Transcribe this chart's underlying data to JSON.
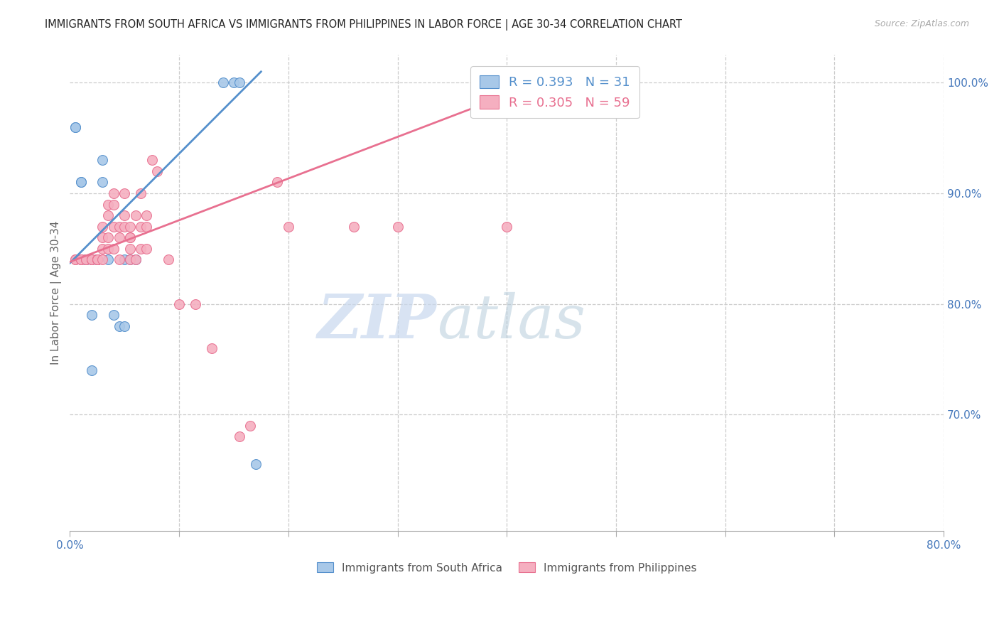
{
  "title": "IMMIGRANTS FROM SOUTH AFRICA VS IMMIGRANTS FROM PHILIPPINES IN LABOR FORCE | AGE 30-34 CORRELATION CHART",
  "source": "Source: ZipAtlas.com",
  "ylabel": "In Labor Force | Age 30-34",
  "xlim": [
    0.0,
    0.8
  ],
  "ylim": [
    0.595,
    1.025
  ],
  "x_ticks": [
    0.0,
    0.1,
    0.2,
    0.3,
    0.4,
    0.5,
    0.6,
    0.7,
    0.8
  ],
  "x_tick_labels": [
    "0.0%",
    "",
    "",
    "",
    "",
    "",
    "",
    "",
    "80.0%"
  ],
  "y_ticks_right": [
    1.0,
    0.9,
    0.8,
    0.7
  ],
  "y_tick_labels_right": [
    "100.0%",
    "90.0%",
    "80.0%",
    "70.0%"
  ],
  "sa_color": "#a8c8e8",
  "ph_color": "#f5afc0",
  "sa_line_color": "#5590cc",
  "ph_line_color": "#e87090",
  "watermark_zip": "ZIP",
  "watermark_atlas": "atlas",
  "legend_r_sa": "R = 0.393",
  "legend_n_sa": "N = 31",
  "legend_r_ph": "R = 0.305",
  "legend_n_ph": "N = 59",
  "sa_scatter_x": [
    0.005,
    0.005,
    0.01,
    0.01,
    0.01,
    0.015,
    0.015,
    0.015,
    0.02,
    0.02,
    0.02,
    0.02,
    0.02,
    0.02,
    0.02,
    0.025,
    0.025,
    0.025,
    0.03,
    0.03,
    0.035,
    0.04,
    0.045,
    0.05,
    0.05,
    0.055,
    0.06,
    0.14,
    0.15,
    0.155,
    0.17
  ],
  "sa_scatter_y": [
    0.96,
    0.96,
    0.91,
    0.91,
    0.84,
    0.84,
    0.84,
    0.84,
    0.84,
    0.84,
    0.84,
    0.84,
    0.84,
    0.79,
    0.74,
    0.84,
    0.84,
    0.84,
    0.91,
    0.93,
    0.84,
    0.79,
    0.78,
    0.78,
    0.84,
    0.84,
    0.84,
    1.0,
    1.0,
    1.0,
    0.655
  ],
  "ph_scatter_x": [
    0.005,
    0.005,
    0.01,
    0.01,
    0.01,
    0.015,
    0.015,
    0.02,
    0.02,
    0.02,
    0.025,
    0.025,
    0.025,
    0.025,
    0.03,
    0.03,
    0.03,
    0.03,
    0.035,
    0.035,
    0.035,
    0.035,
    0.04,
    0.04,
    0.04,
    0.04,
    0.045,
    0.045,
    0.045,
    0.05,
    0.05,
    0.05,
    0.055,
    0.055,
    0.055,
    0.055,
    0.055,
    0.06,
    0.06,
    0.065,
    0.065,
    0.065,
    0.07,
    0.07,
    0.07,
    0.075,
    0.08,
    0.09,
    0.1,
    0.115,
    0.13,
    0.155,
    0.165,
    0.19,
    0.2,
    0.26,
    0.3,
    0.4,
    0.43
  ],
  "ph_scatter_y": [
    0.84,
    0.84,
    0.84,
    0.84,
    0.84,
    0.84,
    0.84,
    0.84,
    0.84,
    0.84,
    0.84,
    0.84,
    0.84,
    0.84,
    0.84,
    0.85,
    0.86,
    0.87,
    0.88,
    0.89,
    0.85,
    0.86,
    0.85,
    0.87,
    0.89,
    0.9,
    0.84,
    0.86,
    0.87,
    0.87,
    0.88,
    0.9,
    0.84,
    0.85,
    0.86,
    0.86,
    0.87,
    0.84,
    0.88,
    0.85,
    0.87,
    0.9,
    0.85,
    0.87,
    0.88,
    0.93,
    0.92,
    0.84,
    0.8,
    0.8,
    0.76,
    0.68,
    0.69,
    0.91,
    0.87,
    0.87,
    0.87,
    0.87,
    1.0
  ],
  "sa_trend_x": [
    0.0,
    0.175
  ],
  "sa_trend_y": [
    0.837,
    1.01
  ],
  "ph_trend_x": [
    0.0,
    0.43
  ],
  "ph_trend_y": [
    0.838,
    1.0
  ]
}
